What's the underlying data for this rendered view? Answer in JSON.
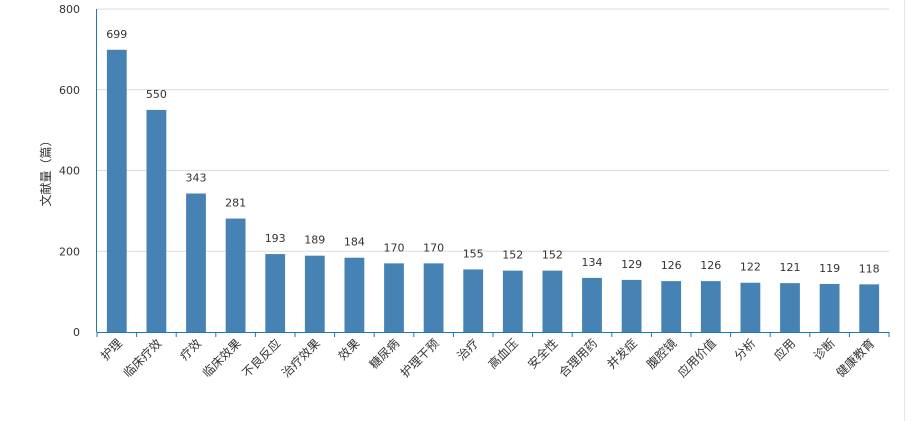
{
  "chart_data": {
    "type": "bar",
    "title": "",
    "xlabel": "",
    "ylabel": "文献量（篇）",
    "ylim": [
      0,
      800
    ],
    "yticks": [
      0,
      200,
      400,
      600,
      800
    ],
    "grid": true,
    "bar_color": "#4682b4",
    "axis_color": "#1f77b4",
    "grid_color": "#dcdcdc",
    "categories": [
      "护理",
      "临床疗效",
      "疗效",
      "临床效果",
      "不良反应",
      "治疗效果",
      "效果",
      "糖尿病",
      "护理干预",
      "治疗",
      "高血压",
      "安全性",
      "合理用药",
      "并发症",
      "腹腔镜",
      "应用价值",
      "分析",
      "应用",
      "诊断",
      "健康教育"
    ],
    "values": [
      699,
      550,
      343,
      281,
      193,
      189,
      184,
      170,
      170,
      155,
      152,
      152,
      134,
      129,
      126,
      126,
      122,
      121,
      119,
      118
    ]
  }
}
